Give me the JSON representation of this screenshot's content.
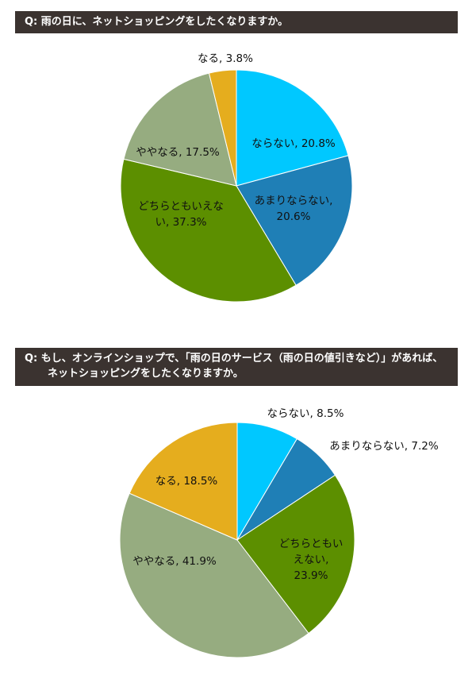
{
  "questions": [
    {
      "lines": [
        "Q:  雨の日に、ネットショッピングをしたくなりますか。"
      ]
    },
    {
      "lines": [
        "Q:  もし、オンラインショップで、「雨の日のサービス（雨の日の値引きなど）」があれば、",
        "ネットショッピングをしたくなりますか。"
      ]
    }
  ],
  "chart_data": [
    {
      "type": "pie",
      "title": "Q:  雨の日に、ネットショッピングをしたくなりますか。",
      "slices": [
        {
          "label": "ならない",
          "value": 20.8,
          "display": "20.8%",
          "color": "#00c8ff"
        },
        {
          "label": "あまりならない",
          "value": 20.6,
          "display": "20.6%",
          "color": "#1f7fb6"
        },
        {
          "label": "どちらともいえない",
          "value": 37.3,
          "display": "37.3%",
          "color": "#5c8f00"
        },
        {
          "label": "ややなる",
          "value": 17.5,
          "display": "17.5%",
          "color": "#96ac80"
        },
        {
          "label": "なる",
          "value": 3.8,
          "display": "3.8%",
          "color": "#e5ad1e"
        }
      ]
    },
    {
      "type": "pie",
      "title": "Q:  もし、オンラインショップで、「雨の日のサービス（雨の日の値引きなど）」があれば、ネットショッピングをしたくなりますか。",
      "slices": [
        {
          "label": "ならない",
          "value": 8.5,
          "display": "8.5%",
          "color": "#00c8ff"
        },
        {
          "label": "あまりならない",
          "value": 7.2,
          "display": "7.2%",
          "color": "#1f7fb6"
        },
        {
          "label": "どちらともいえない",
          "value": 23.9,
          "display": "23.9%",
          "color": "#5c8f00"
        },
        {
          "label": "ややなる",
          "value": 41.9,
          "display": "41.9%",
          "color": "#96ac80"
        },
        {
          "label": "なる",
          "value": 18.5,
          "display": "18.5%",
          "color": "#e5ad1e"
        }
      ]
    }
  ]
}
